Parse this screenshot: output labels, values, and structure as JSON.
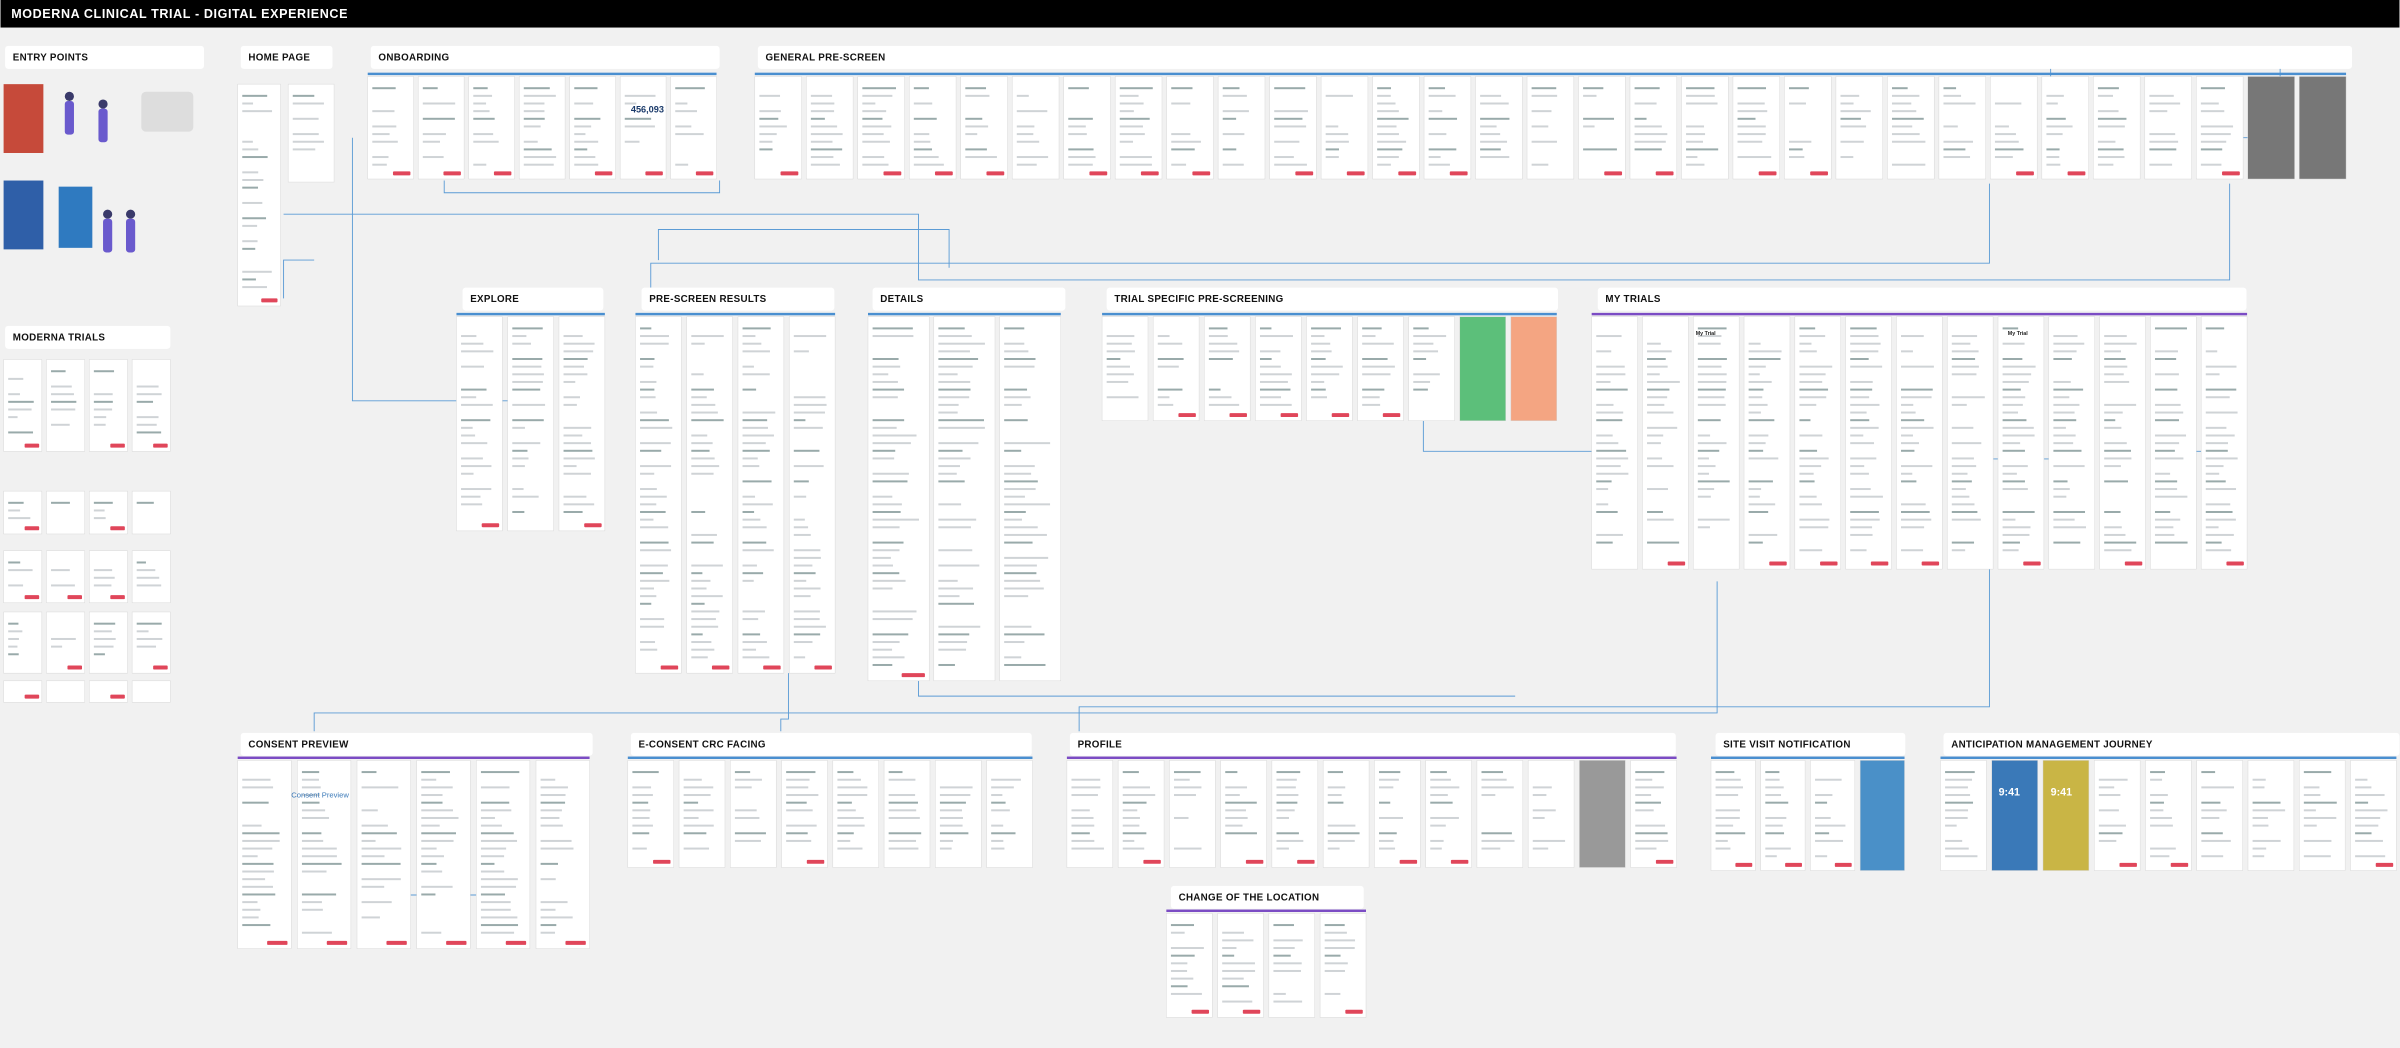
{
  "header": {
    "title": "MODERNA CLINICAL TRIAL - DIGITAL EXPERIENCE"
  },
  "sections": [
    "ENTRY POINTS",
    "MODERNA TRIALS",
    "HOME PAGE",
    "ONBOARDING",
    "GENERAL PRE-SCREEN",
    "EXPLORE",
    "PRE-SCREEN RESULTS",
    "DETAILS",
    "TRIAL SPECIFIC PRE-SCREENING",
    "MY TRIALS",
    "CONSENT PREVIEW",
    "E-CONSENT CRC FACING",
    "PROFILE",
    "SITE VISIT NOTIFICATION",
    "ANTICIPATION MANAGEMENT JOURNEY",
    "CHANGE OF THE LOCATION"
  ],
  "screen_texts": {
    "onboarding_counter": "456,093",
    "consent_title": "Consent Preview",
    "lock_time_1": "9:41",
    "lock_time_2": "9:41",
    "my_trial_1": "My Trial",
    "my_trial_2": "My Trial"
  }
}
